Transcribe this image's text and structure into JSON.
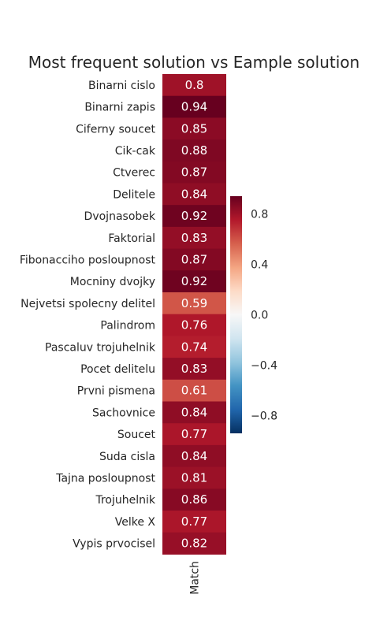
{
  "chart_data": {
    "type": "heatmap",
    "title": "Most frequent solution vs Eample solution",
    "rows": [
      "Binarni cislo",
      "Binarni zapis",
      "Ciferny soucet",
      "Cik-cak",
      "Ctverec",
      "Delitele",
      "Dvojnasobek",
      "Faktorial",
      "Fibonacciho posloupnost",
      "Mocniny dvojky",
      "Nejvetsi spolecny delitel",
      "Palindrom",
      "Pascaluv trojuhelnik",
      "Pocet delitelu",
      "Prvni pismena",
      "Sachovnice",
      "Soucet",
      "Suda cisla",
      "Tajna posloupnost",
      "Trojuhelnik",
      "Velke X",
      "Vypis prvocisel"
    ],
    "columns": [
      "Match"
    ],
    "values": [
      0.8,
      0.94,
      0.85,
      0.88,
      0.87,
      0.84,
      0.92,
      0.83,
      0.87,
      0.92,
      0.59,
      0.76,
      0.74,
      0.83,
      0.61,
      0.84,
      0.77,
      0.84,
      0.81,
      0.86,
      0.77,
      0.82
    ],
    "value_labels": [
      "0.8",
      "0.94",
      "0.85",
      "0.88",
      "0.87",
      "0.84",
      "0.92",
      "0.83",
      "0.87",
      "0.92",
      "0.59",
      "0.76",
      "0.74",
      "0.83",
      "0.61",
      "0.84",
      "0.77",
      "0.84",
      "0.81",
      "0.86",
      "0.77",
      "0.82"
    ],
    "colorbar": {
      "range": [
        -0.94,
        0.94
      ],
      "ticks": [
        0.8,
        0.4,
        0.0,
        -0.4,
        -0.8
      ],
      "tick_labels": [
        "0.8",
        "0.4",
        "0.0",
        "−0.4",
        "−0.8"
      ],
      "colormap": "RdBu_r",
      "colors": [
        "#053061",
        "#2166ac",
        "#4393c3",
        "#92c5de",
        "#d1e5f0",
        "#f7f7f7",
        "#fddbc7",
        "#f4a582",
        "#d6604d",
        "#b2182b",
        "#67001f"
      ]
    },
    "grid": false,
    "legend": "colorbar right"
  }
}
